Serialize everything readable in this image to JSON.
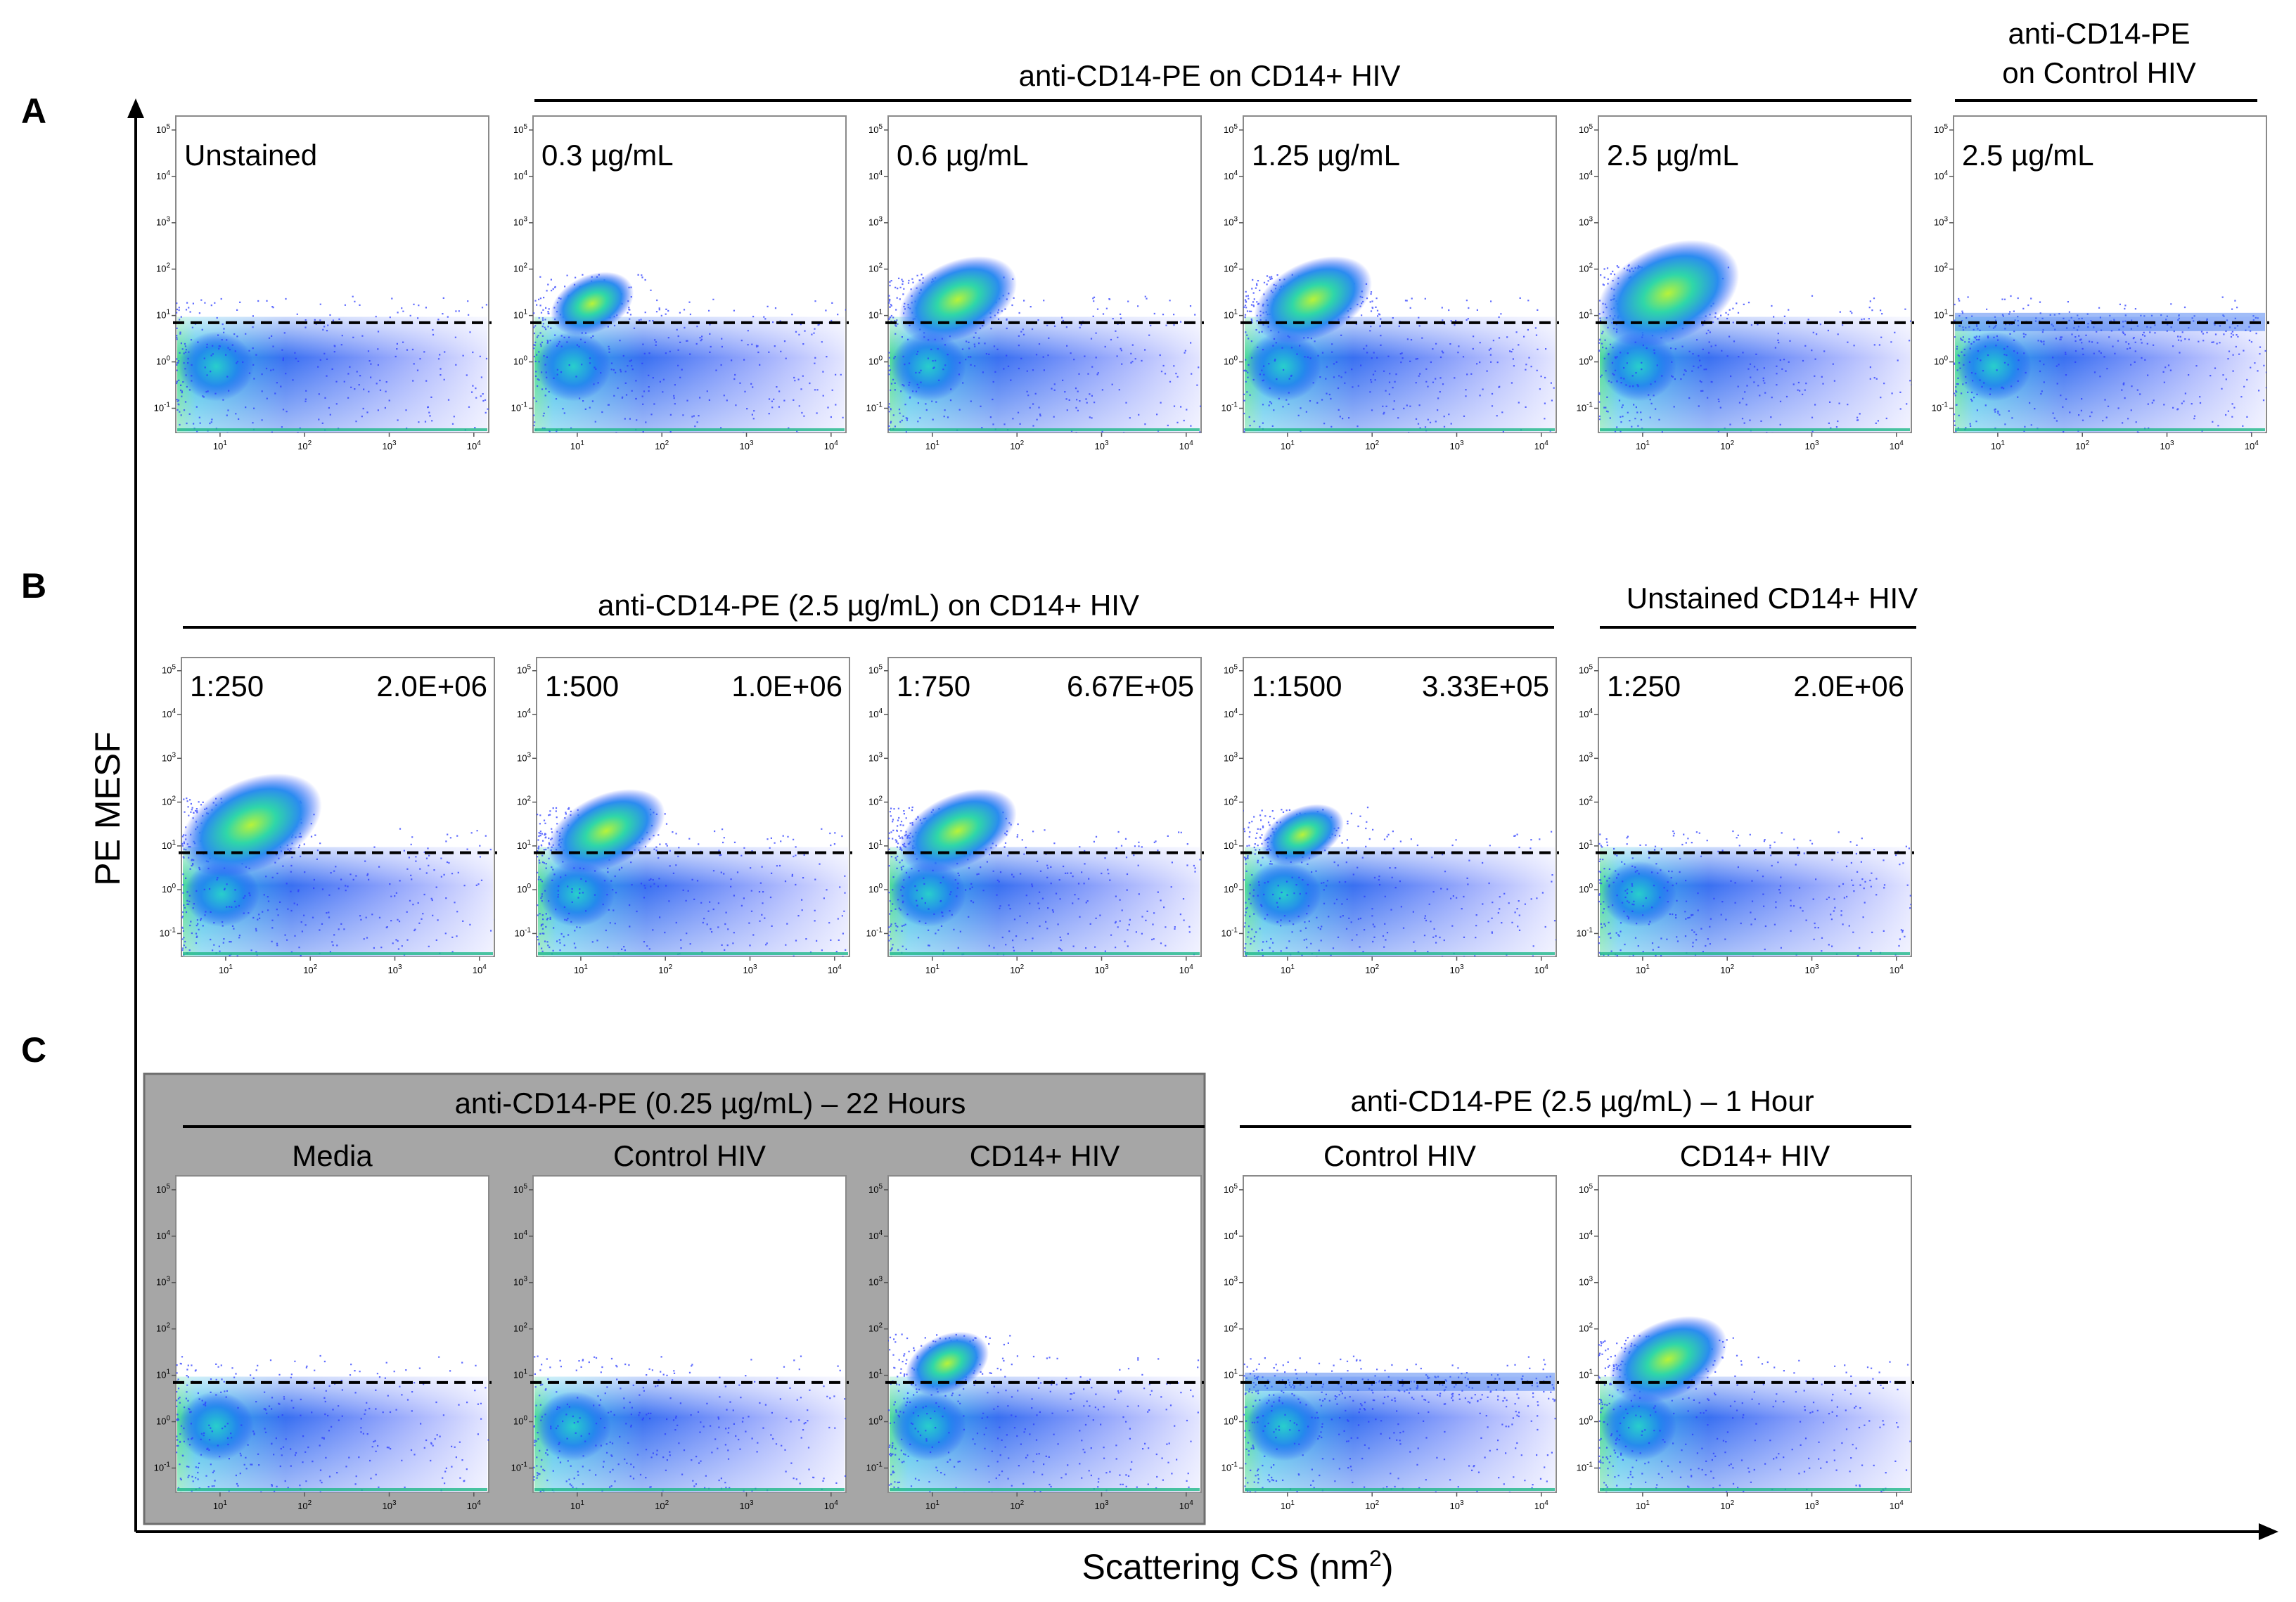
{
  "figure": {
    "y_axis_label": "PE MESF",
    "x_axis_label": "Scattering CS (nm",
    "x_axis_label_sup": "2",
    "x_axis_label_close": ")",
    "highlight_color": "#ff0000",
    "shade_color": "#a6a6a6"
  },
  "rows": [
    {
      "letter": "A",
      "headers": [
        {
          "label": "anti-CD14-PE on CD14+ HIV"
        },
        {
          "label_line1": "anti-CD14-PE",
          "label_line2": "on Control HIV"
        }
      ],
      "panels": [
        {
          "label": "Unstained",
          "pop": "none"
        },
        {
          "label": "0.3 µg/mL",
          "pop": "weak"
        },
        {
          "label": "0.6 µg/mL",
          "pop": "mid"
        },
        {
          "label": "1.25 µg/mL",
          "pop": "mid"
        },
        {
          "label": "2.5 µg/mL",
          "pop": "strong"
        },
        {
          "label": "2.5 µg/mL",
          "pop": "flat"
        }
      ]
    },
    {
      "letter": "B",
      "headers": [
        {
          "label": "anti-CD14-PE (2.5 µg/mL) on CD14+ HIV"
        },
        {
          "label": "Unstained CD14+ HIV"
        }
      ],
      "panels": [
        {
          "label": "1:250",
          "value": "2.0E+06",
          "pop": "strong"
        },
        {
          "label": "1:500",
          "value": "1.0E+06",
          "pop": "mid"
        },
        {
          "label": "1:750",
          "value": "6.67E+05",
          "pop": "mid"
        },
        {
          "label": "1:1500",
          "value": "3.33E+05",
          "pop": "weak"
        },
        {
          "label": "1:250",
          "value": "2.0E+06",
          "pop": "none"
        }
      ]
    },
    {
      "letter": "C",
      "headers": [
        {
          "label": "anti-CD14-PE (0.25 µg/mL) – 22 Hours"
        },
        {
          "label": "anti-CD14-PE (2.5 µg/mL) – 1 Hour"
        }
      ],
      "panels": [
        {
          "title": "Media",
          "pop": "none"
        },
        {
          "title": "Control HIV",
          "pop": "none"
        },
        {
          "title": "CD14+ HIV",
          "pop": "weak"
        },
        {
          "title": "Control HIV",
          "pop": "flat"
        },
        {
          "title": "CD14+ HIV",
          "pop": "mid"
        }
      ]
    }
  ],
  "chart_data": {
    "type": "scatter",
    "title": "",
    "xlabel": "Scattering CS (nm2)",
    "ylabel": "PE MESF",
    "x_scale": "log",
    "y_scale": "log",
    "x_ticks": [
      "10^1",
      "10^2",
      "10^3",
      "10^4"
    ],
    "y_ticks": [
      "10^-1",
      "10^0",
      "10^1",
      "10^2",
      "10^3",
      "10^4",
      "10^5"
    ],
    "xlim": [
      3,
      15000
    ],
    "ylim": [
      0.03,
      200000
    ],
    "threshold_line_y": 7,
    "density_colormap": [
      "blue",
      "cyan",
      "green",
      "yellow"
    ],
    "panels": [
      {
        "row": "A",
        "label": "Unstained"
      },
      {
        "row": "A",
        "label": "0.3 µg/mL"
      },
      {
        "row": "A",
        "label": "0.6 µg/mL"
      },
      {
        "row": "A",
        "label": "1.25 µg/mL"
      },
      {
        "row": "A",
        "label": "2.5 µg/mL"
      },
      {
        "row": "A",
        "label": "2.5 µg/mL (Control HIV)"
      },
      {
        "row": "B",
        "label": "1:250",
        "value": "2.0E+06"
      },
      {
        "row": "B",
        "label": "1:500",
        "value": "1.0E+06"
      },
      {
        "row": "B",
        "label": "1:750",
        "value": "6.67E+05"
      },
      {
        "row": "B",
        "label": "1:1500",
        "value": "3.33E+05"
      },
      {
        "row": "B",
        "label": "1:250 (Unstained CD14+ HIV)",
        "value": "2.0E+06"
      },
      {
        "row": "C",
        "label": "Media"
      },
      {
        "row": "C",
        "label": "Control HIV"
      },
      {
        "row": "C",
        "label": "CD14+ HIV"
      },
      {
        "row": "C",
        "label": "Control HIV (1 Hour)"
      },
      {
        "row": "C",
        "label": "CD14+ HIV (1 Hour)"
      }
    ]
  }
}
